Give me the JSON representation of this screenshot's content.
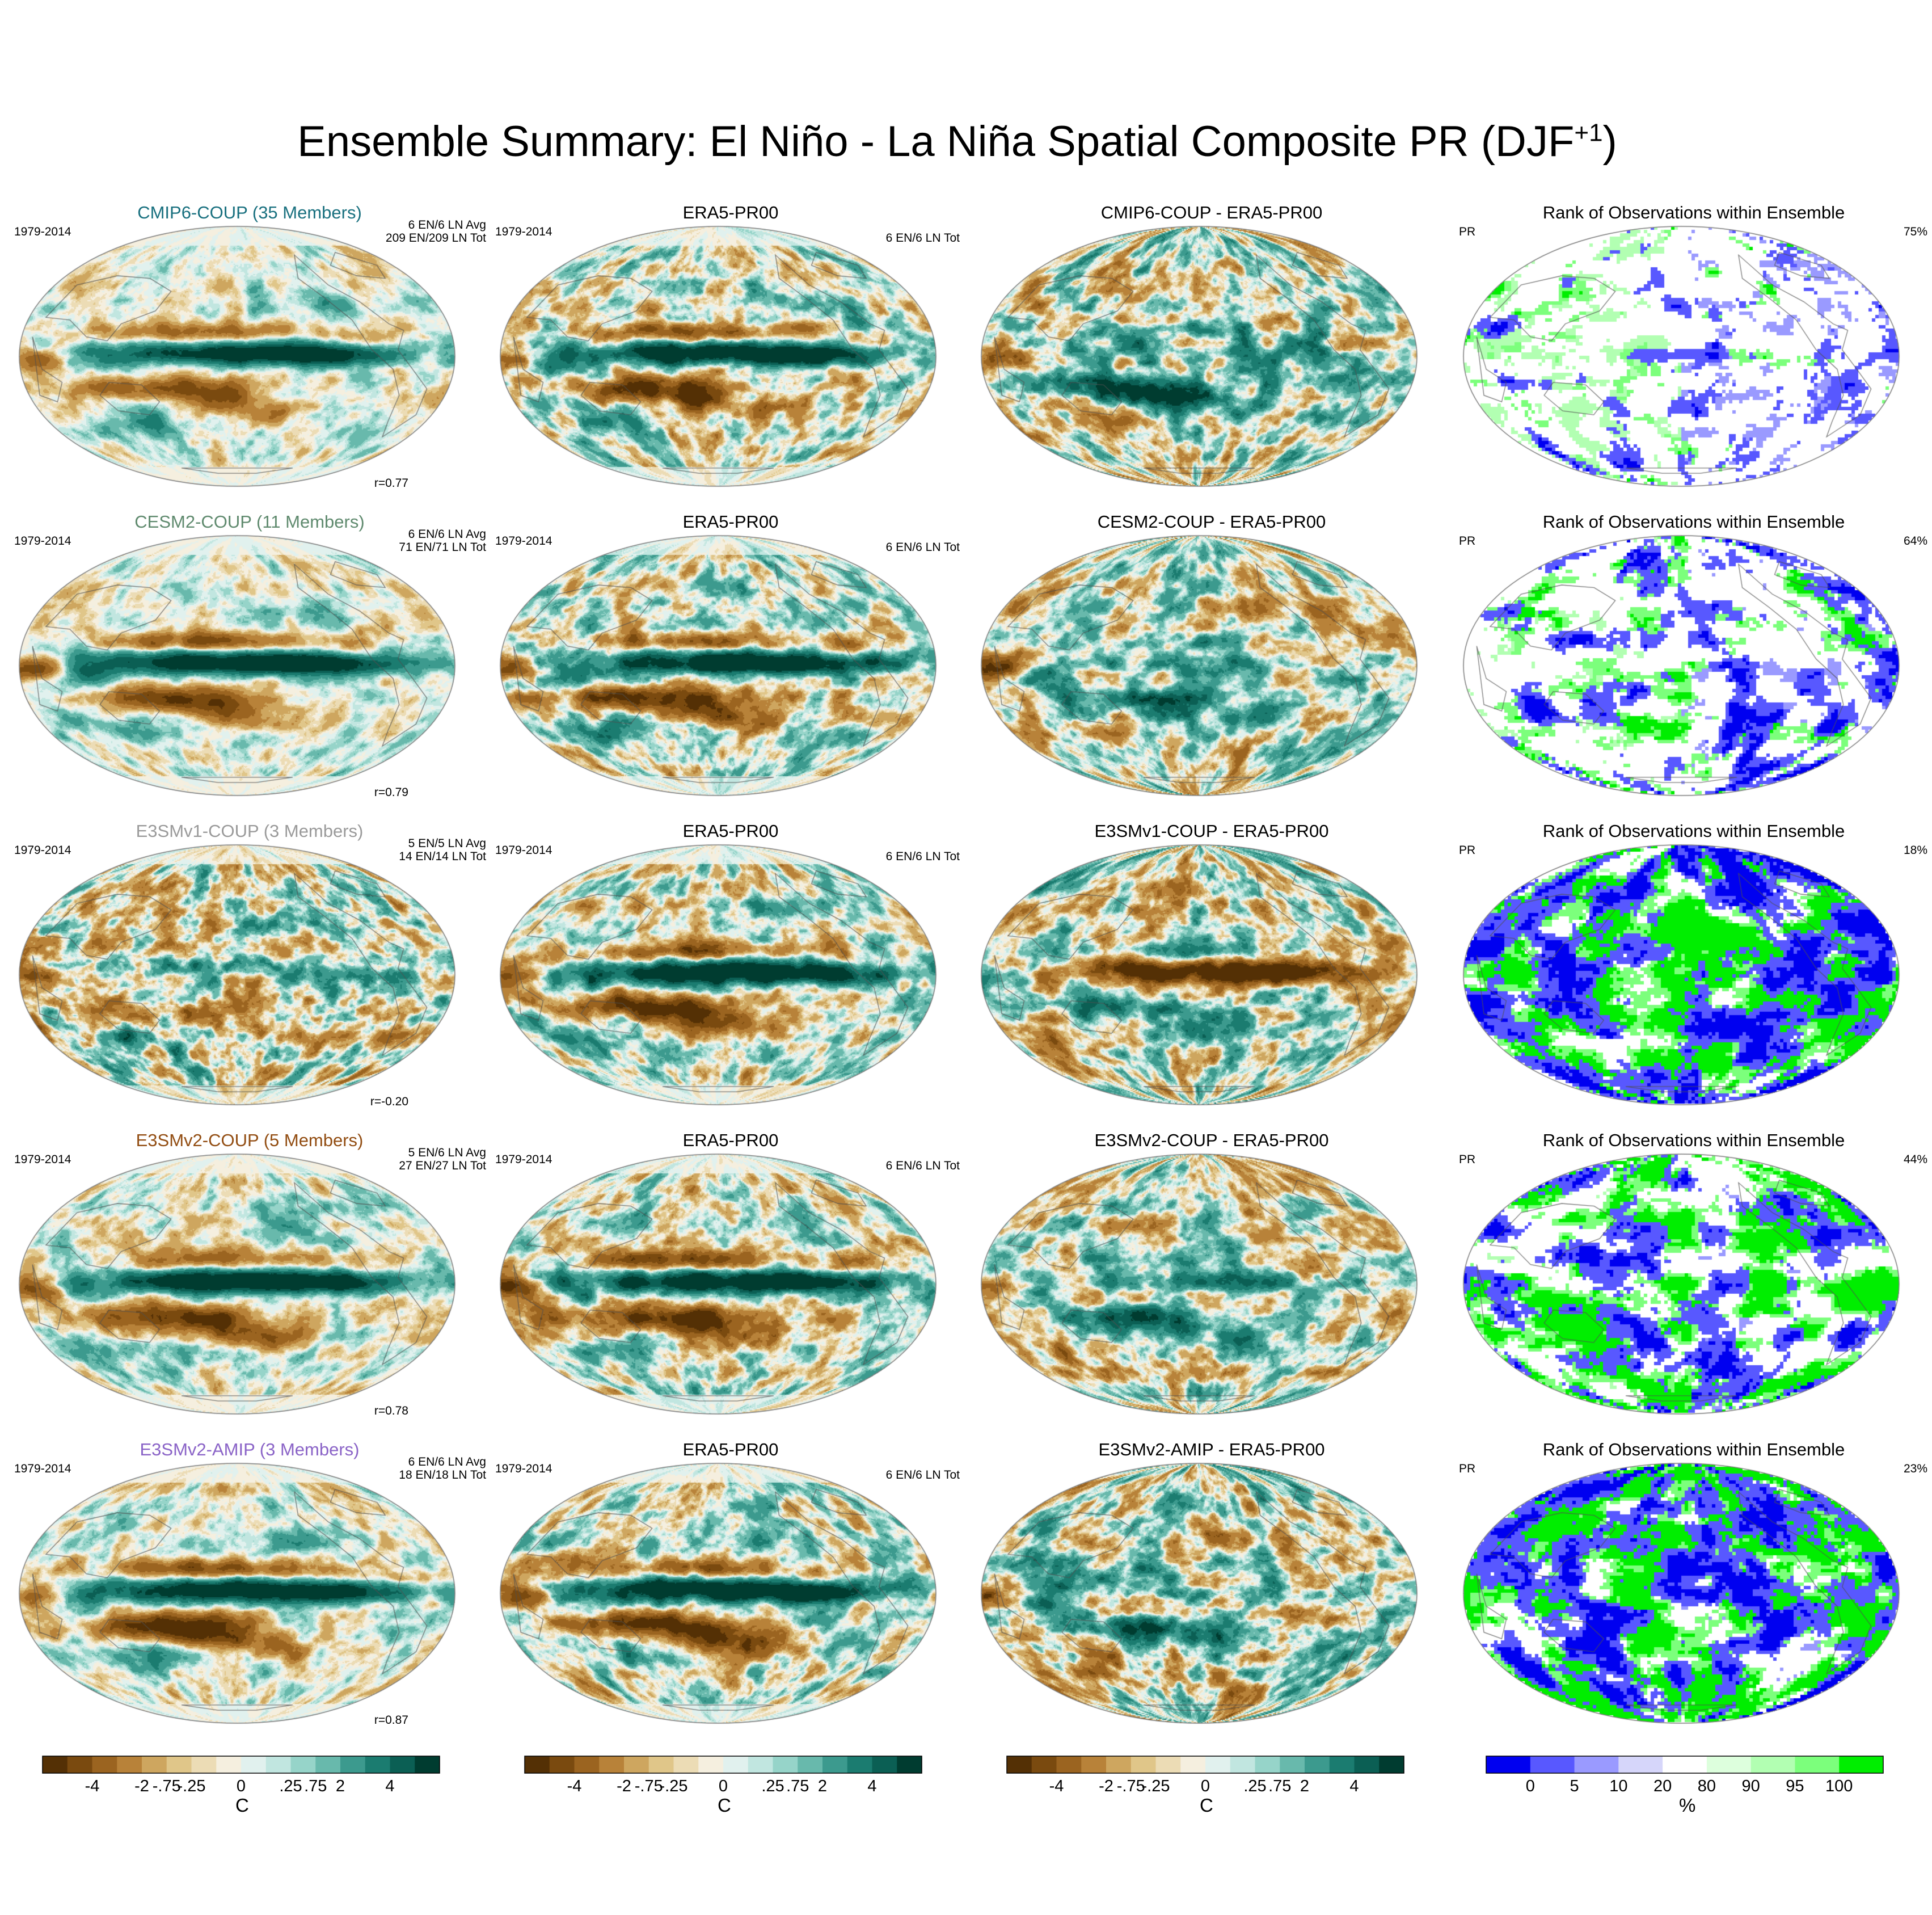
{
  "title": {
    "text": "Ensemble Summary: El Niño - La Niña Spatial Composite PR (DJF",
    "sup": "+1",
    "close": ")"
  },
  "colors": {
    "brbg": [
      "#543005",
      "#7a4a0f",
      "#9b6420",
      "#b88239",
      "#cea65f",
      "#e0c689",
      "#ecdcb5",
      "#f5efdf",
      "#e1f1ee",
      "#c1e6e0",
      "#96d4c9",
      "#68b9ac",
      "#3c9a8e",
      "#1b7c70",
      "#0b5f54",
      "#003c30"
    ],
    "rank": [
      "#0000f0",
      "#5858ff",
      "#9a9aff",
      "#d6d6fa",
      "#ffffff",
      "#ddffdd",
      "#b2ffb2",
      "#7cff7c",
      "#00ee00"
    ],
    "ocean_neutral": "#f3efe4",
    "model_titles": [
      "#19707f",
      "#5f8a6e",
      "#9a9a9a",
      "#924d12",
      "#8a63c7"
    ]
  },
  "rows": [
    {
      "model": {
        "title": "CMIP6-COUP (35 Members)",
        "period": "1979-2014",
        "avg": "6 EN/6 LN Avg",
        "tot": "209 EN/209 LN Tot",
        "corr": "r=0.77"
      },
      "obs": {
        "title": "ERA5-PR00",
        "period": "1979-2014",
        "tot": "6 EN/6 LN Tot"
      },
      "diff": {
        "title": "CMIP6-COUP - ERA5-PR00"
      },
      "rank": {
        "title": "Rank of Observations within Ensemble",
        "var": "PR",
        "pct": "75%"
      }
    },
    {
      "model": {
        "title": "CESM2-COUP (11 Members)",
        "period": "1979-2014",
        "avg": "6 EN/6 LN Avg",
        "tot": "71 EN/71 LN Tot",
        "corr": "r=0.79"
      },
      "obs": {
        "title": "ERA5-PR00",
        "period": "1979-2014",
        "tot": "6 EN/6 LN Tot"
      },
      "diff": {
        "title": "CESM2-COUP - ERA5-PR00"
      },
      "rank": {
        "title": "Rank of Observations within Ensemble",
        "var": "PR",
        "pct": "64%"
      }
    },
    {
      "model": {
        "title": "E3SMv1-COUP (3 Members)",
        "period": "1979-2014",
        "avg": "5 EN/5 LN Avg",
        "tot": "14 EN/14 LN Tot",
        "corr": "r=-0.20"
      },
      "obs": {
        "title": "ERA5-PR00",
        "period": "1979-2014",
        "tot": "6 EN/6 LN Tot"
      },
      "diff": {
        "title": "E3SMv1-COUP - ERA5-PR00"
      },
      "rank": {
        "title": "Rank of Observations within Ensemble",
        "var": "PR",
        "pct": "18%"
      }
    },
    {
      "model": {
        "title": "E3SMv2-COUP (5 Members)",
        "period": "1979-2014",
        "avg": "5 EN/6 LN Avg",
        "tot": "27 EN/27 LN Tot",
        "corr": "r=0.78"
      },
      "obs": {
        "title": "ERA5-PR00",
        "period": "1979-2014",
        "tot": "6 EN/6 LN Tot"
      },
      "diff": {
        "title": "E3SMv2-COUP - ERA5-PR00"
      },
      "rank": {
        "title": "Rank of Observations within Ensemble",
        "var": "PR",
        "pct": "44%"
      }
    },
    {
      "model": {
        "title": "E3SMv2-AMIP (3 Members)",
        "period": "1979-2014",
        "avg": "6 EN/6 LN Avg",
        "tot": "18 EN/18 LN Tot",
        "corr": "r=0.87"
      },
      "obs": {
        "title": "ERA5-PR00",
        "period": "1979-2014",
        "tot": "6 EN/6 LN Tot"
      },
      "diff": {
        "title": "E3SMv2-AMIP - ERA5-PR00"
      },
      "rank": {
        "title": "Rank of Observations within Ensemble",
        "var": "PR",
        "pct": "23%"
      }
    }
  ],
  "colorbars": {
    "anomaly": {
      "ticks": [
        "-4",
        "-2",
        "-.75",
        "-.25",
        "0",
        ".25",
        ".75",
        "2",
        "4"
      ],
      "unit": "C"
    },
    "rank": {
      "ticks": [
        "0",
        "5",
        "10",
        "20",
        "80",
        "90",
        "95",
        "100"
      ],
      "unit": "%"
    }
  },
  "map_fields": {
    "model": [
      {
        "nino": 5.5,
        "south": 3.2,
        "north": 2.6,
        "west": 3.0,
        "ext": 1.5,
        "noise": 1.0
      },
      {
        "nino": 6.0,
        "south": 3.2,
        "north": 3.0,
        "west": 4.5,
        "ext": 2.5,
        "noise": 1.0
      },
      {
        "nino": 1.2,
        "south": 2.0,
        "north": 1.0,
        "west": 1.2,
        "ext": 1.0,
        "noise": 2.4
      },
      {
        "nino": 6.0,
        "south": 3.4,
        "north": 2.7,
        "west": 3.4,
        "ext": 1.5,
        "noise": 1.2
      },
      {
        "nino": 6.0,
        "south": 4.0,
        "north": 3.4,
        "west": 3.5,
        "ext": 2.2,
        "noise": 1.2
      }
    ],
    "obs": {
      "nino": 6.0,
      "south": 4.0,
      "north": 3.2,
      "west": 4.0,
      "ext": 1.2,
      "noise": 1.8
    },
    "diff": [
      {
        "nino": 1.5,
        "south": -3.5,
        "north": -1.8,
        "west": 3.5,
        "ext": -0.5,
        "noise": 2.2
      },
      {
        "nino": 1.5,
        "south": -3.2,
        "north": -1.5,
        "west": 4.5,
        "ext": 0.8,
        "noise": 2.0
      },
      {
        "nino": -6.0,
        "south": -2.5,
        "north": -2.5,
        "west": -3.5,
        "ext": -1.0,
        "noise": 2.2
      },
      {
        "nino": 2.5,
        "south": -3.0,
        "north": -1.5,
        "west": 3.0,
        "ext": 0.5,
        "noise": 2.0
      },
      {
        "nino": 1.2,
        "south": -2.5,
        "north": -1.0,
        "west": 2.5,
        "ext": 0.4,
        "noise": 2.4
      }
    ],
    "rank_mix": [
      {
        "blue": 0.13,
        "green": 0.18,
        "pale": 0.1
      },
      {
        "blue": 0.28,
        "green": 0.3,
        "pale": 0.05
      },
      {
        "blue": 0.42,
        "green": 0.58,
        "pale": 0.0
      },
      {
        "blue": 0.33,
        "green": 0.42,
        "pale": 0.03
      },
      {
        "blue": 0.38,
        "green": 0.6,
        "pale": 0.0
      }
    ]
  }
}
